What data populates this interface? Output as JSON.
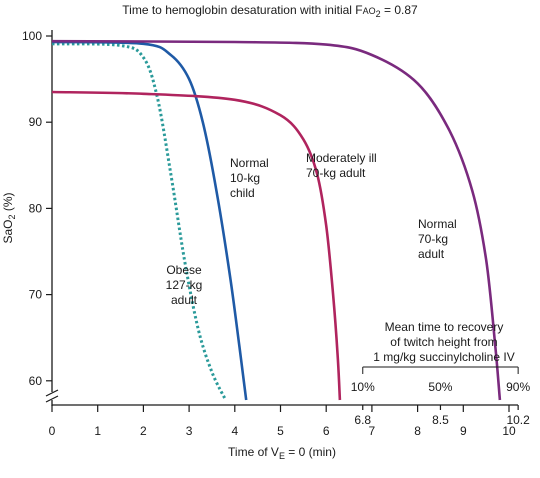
{
  "chart_data": {
    "type": "line",
    "title_prefix": "Time to hemoglobin desaturation with initial F",
    "title_sub": "AO",
    "title_sub2": "2",
    "title_suffix": " = 0.87",
    "ylabel_main": "SaO",
    "ylabel_sub": "2",
    "ylabel_suffix": " (%)",
    "xlabel_prefix": "Time of V",
    "xlabel_sub": "E",
    "xlabel_suffix": " = 0 (min)",
    "xlim": [
      0,
      10.2
    ],
    "ylim": [
      58,
      100
    ],
    "x_ticks": [
      "0",
      "1",
      "2",
      "3",
      "4",
      "5",
      "6",
      "7",
      "8",
      "9",
      "10"
    ],
    "y_ticks": [
      "60",
      "70",
      "80",
      "90",
      "100"
    ],
    "series": [
      {
        "name_lines": [
          "Obese",
          "127-kg",
          "adult"
        ],
        "color": "#2a9a9a",
        "dashed": true,
        "points": [
          [
            0,
            99.1
          ],
          [
            1.5,
            98.9
          ],
          [
            2.0,
            97.5
          ],
          [
            2.3,
            93.0
          ],
          [
            2.6,
            84.0
          ],
          [
            2.9,
            74.0
          ],
          [
            3.2,
            66.0
          ],
          [
            3.5,
            61.0
          ],
          [
            3.8,
            58.0
          ]
        ]
      },
      {
        "name_lines": [
          "Normal",
          "10-kg",
          "child"
        ],
        "color": "#1f5aa6",
        "dashed": false,
        "points": [
          [
            0,
            99.3
          ],
          [
            2.0,
            99.1
          ],
          [
            2.6,
            97.8
          ],
          [
            3.0,
            95.0
          ],
          [
            3.3,
            90.0
          ],
          [
            3.6,
            82.0
          ],
          [
            3.9,
            72.0
          ],
          [
            4.1,
            64.0
          ],
          [
            4.25,
            58.0
          ]
        ]
      },
      {
        "name_lines": [
          "Moderately ill",
          "70-kg adult"
        ],
        "color": "#b0245e",
        "dashed": false,
        "points": [
          [
            0,
            93.5
          ],
          [
            2.0,
            93.3
          ],
          [
            4.0,
            92.6
          ],
          [
            5.0,
            90.8
          ],
          [
            5.5,
            88.0
          ],
          [
            5.8,
            84.0
          ],
          [
            6.0,
            78.0
          ],
          [
            6.15,
            70.0
          ],
          [
            6.25,
            63.0
          ],
          [
            6.3,
            58.0
          ]
        ]
      },
      {
        "name_lines": [
          "Normal",
          "70-kg",
          "adult"
        ],
        "color": "#7a2a7e",
        "dashed": false,
        "points": [
          [
            0,
            99.4
          ],
          [
            4.0,
            99.3
          ],
          [
            6.0,
            99.0
          ],
          [
            7.0,
            97.8
          ],
          [
            8.0,
            94.5
          ],
          [
            8.7,
            89.0
          ],
          [
            9.2,
            82.0
          ],
          [
            9.5,
            74.0
          ],
          [
            9.7,
            64.0
          ],
          [
            9.8,
            58.0
          ]
        ]
      }
    ],
    "succinylcholine": {
      "caption_lines": [
        "Mean time to recovery",
        "of twitch height from",
        "1 mg/kg succinylcholine IV"
      ],
      "percent_labels": [
        {
          "label": "10%",
          "x": 6.8
        },
        {
          "label": "50%",
          "x": 8.5
        },
        {
          "label": "90%",
          "x": 10.2
        }
      ],
      "marker_values": [
        "6.8",
        "8.5",
        "10.2"
      ]
    }
  }
}
